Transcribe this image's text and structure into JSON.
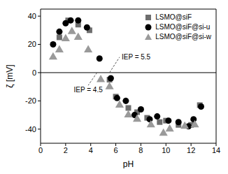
{
  "chart_data": {
    "type": "scatter",
    "x_label": "pH",
    "y_label": "ζ [mV]",
    "xlim": [
      0,
      14
    ],
    "xticks": [
      0,
      2,
      4,
      6,
      8,
      10,
      12,
      14
    ],
    "ylim": [
      -50,
      45
    ],
    "yticks": [
      -40,
      -20,
      0,
      20,
      40
    ],
    "hline": 0,
    "legend": "upper right",
    "annotations": [
      {
        "text": "IEP = 5.5",
        "x": 5.5
      },
      {
        "text": "IEP = 4.5",
        "x": 4.5
      }
    ],
    "series": [
      {
        "name": "LSMO@siF",
        "color": "#6e6e6e",
        "marker": "square",
        "x": [
          1.5,
          2.2,
          3,
          3.9,
          5.5,
          6,
          7,
          7.7,
          8.5,
          9.5,
          10,
          11,
          12,
          12.7
        ],
        "values": [
          25,
          37,
          34,
          30,
          -5,
          -17,
          -25,
          -28,
          -32,
          -35,
          -34,
          -37,
          -37,
          -23
        ]
      },
      {
        "name": "LSMO@siF@si-u",
        "color": "#000000",
        "marker": "circle",
        "x": [
          1,
          1.5,
          2,
          2.4,
          3,
          3.7,
          4.7,
          5.6,
          6.1,
          6.8,
          7.5,
          8,
          8.7,
          9.3,
          10.2,
          11,
          11.8,
          12.2,
          12.8
        ],
        "values": [
          20,
          29,
          35,
          37,
          37,
          32,
          10,
          -4,
          -18,
          -20,
          -30,
          -26,
          -33,
          -31,
          -34,
          -35,
          -38,
          -33,
          -24
        ]
      },
      {
        "name": "LSMO@siF@si-w",
        "color": "#9a9a9a",
        "marker": "triangle",
        "x": [
          1,
          1.5,
          2,
          2.5,
          3,
          3.8,
          4.8,
          5.5,
          6.3,
          7,
          7.7,
          8.8,
          9.8,
          10.3,
          11.5,
          12.3
        ],
        "values": [
          11,
          16,
          24,
          29,
          25,
          16,
          -5,
          -10,
          -23,
          -30,
          -33,
          -37,
          -43,
          -40,
          -38,
          -37
        ]
      }
    ]
  }
}
